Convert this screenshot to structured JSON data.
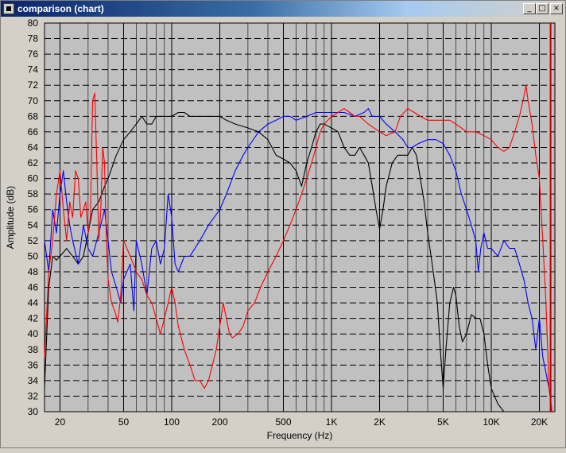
{
  "window": {
    "title": "comparison (chart)",
    "minimize_glyph": "_",
    "maximize_glyph": "□",
    "close_glyph": "×"
  },
  "chart_data": {
    "type": "line",
    "xlabel": "Frequency (Hz)",
    "ylabel": "Amplitude (dB)",
    "xscale": "log",
    "xlim": [
      16,
      25000
    ],
    "ylim": [
      30,
      80
    ],
    "grid": true,
    "background": "#c0c0c0",
    "xtick_labels": [
      {
        "v": 20,
        "t": "20"
      },
      {
        "v": 50,
        "t": "50"
      },
      {
        "v": 100,
        "t": "100"
      },
      {
        "v": 200,
        "t": "200"
      },
      {
        "v": 500,
        "t": "500"
      },
      {
        "v": 1000,
        "t": "1K"
      },
      {
        "v": 2000,
        "t": "2K"
      },
      {
        "v": 5000,
        "t": "5K"
      },
      {
        "v": 10000,
        "t": "10K"
      },
      {
        "v": 20000,
        "t": "20K"
      }
    ],
    "minor_xticks": [
      30,
      40,
      60,
      70,
      80,
      90,
      300,
      400,
      600,
      700,
      800,
      900,
      3000,
      4000,
      6000,
      7000,
      8000,
      9000
    ],
    "yticks": [
      30,
      32,
      34,
      36,
      38,
      40,
      42,
      44,
      46,
      48,
      50,
      52,
      54,
      56,
      58,
      60,
      62,
      64,
      66,
      68,
      70,
      72,
      74,
      76,
      78,
      80
    ],
    "cursor": {
      "x": 23500,
      "color": "#c00000"
    },
    "series": [
      {
        "color": "#000000",
        "points": [
          [
            16,
            33
          ],
          [
            17,
            46
          ],
          [
            18,
            50
          ],
          [
            19,
            49.5
          ],
          [
            20,
            50
          ],
          [
            21,
            50.5
          ],
          [
            22,
            51
          ],
          [
            24,
            50
          ],
          [
            26,
            49
          ],
          [
            28,
            50
          ],
          [
            30,
            53
          ],
          [
            32,
            56
          ],
          [
            35,
            57
          ],
          [
            38,
            59
          ],
          [
            40,
            60
          ],
          [
            45,
            63
          ],
          [
            50,
            65
          ],
          [
            55,
            66
          ],
          [
            60,
            67
          ],
          [
            65,
            68
          ],
          [
            70,
            67
          ],
          [
            75,
            67
          ],
          [
            80,
            68
          ],
          [
            90,
            68
          ],
          [
            100,
            68
          ],
          [
            110,
            68.5
          ],
          [
            120,
            68.5
          ],
          [
            130,
            68
          ],
          [
            150,
            68
          ],
          [
            170,
            68
          ],
          [
            200,
            68
          ],
          [
            220,
            67.5
          ],
          [
            250,
            67
          ],
          [
            300,
            66.5
          ],
          [
            350,
            66
          ],
          [
            400,
            65
          ],
          [
            450,
            63
          ],
          [
            500,
            62.5
          ],
          [
            550,
            62
          ],
          [
            600,
            61
          ],
          [
            650,
            59
          ],
          [
            700,
            62
          ],
          [
            750,
            64
          ],
          [
            800,
            66
          ],
          [
            850,
            67
          ],
          [
            900,
            67
          ],
          [
            1000,
            66.5
          ],
          [
            1100,
            66
          ],
          [
            1200,
            64
          ],
          [
            1300,
            63
          ],
          [
            1400,
            63
          ],
          [
            1500,
            64
          ],
          [
            1600,
            63
          ],
          [
            1700,
            62
          ],
          [
            1800,
            59
          ],
          [
            1900,
            56
          ],
          [
            2000,
            53.5
          ],
          [
            2100,
            56
          ],
          [
            2200,
            59
          ],
          [
            2400,
            62
          ],
          [
            2600,
            63
          ],
          [
            2800,
            63
          ],
          [
            3000,
            63
          ],
          [
            3200,
            64
          ],
          [
            3400,
            63
          ],
          [
            3600,
            60
          ],
          [
            3800,
            57
          ],
          [
            4000,
            53
          ],
          [
            4200,
            50
          ],
          [
            4400,
            47
          ],
          [
            4600,
            44
          ],
          [
            4800,
            38
          ],
          [
            5000,
            33
          ],
          [
            5200,
            38
          ],
          [
            5500,
            44
          ],
          [
            5800,
            46
          ],
          [
            6000,
            45
          ],
          [
            6300,
            41
          ],
          [
            6600,
            39
          ],
          [
            7000,
            40
          ],
          [
            7500,
            42.5
          ],
          [
            8000,
            42
          ],
          [
            8500,
            42
          ],
          [
            9000,
            40
          ],
          [
            9500,
            36
          ],
          [
            10000,
            33
          ],
          [
            11000,
            31
          ],
          [
            12000,
            30
          ]
        ]
      },
      {
        "color": "#0000ff",
        "points": [
          [
            16,
            52
          ],
          [
            17,
            48
          ],
          [
            18,
            56
          ],
          [
            19,
            53
          ],
          [
            20,
            58
          ],
          [
            21,
            61
          ],
          [
            22,
            57
          ],
          [
            23,
            54
          ],
          [
            24,
            52
          ],
          [
            26,
            49
          ],
          [
            28,
            54
          ],
          [
            30,
            51
          ],
          [
            32,
            50
          ],
          [
            35,
            53
          ],
          [
            38,
            56
          ],
          [
            40,
            52
          ],
          [
            42,
            48
          ],
          [
            45,
            46
          ],
          [
            48,
            44
          ],
          [
            50,
            47
          ],
          [
            55,
            49
          ],
          [
            58,
            43
          ],
          [
            60,
            52
          ],
          [
            65,
            49
          ],
          [
            70,
            45
          ],
          [
            75,
            51
          ],
          [
            80,
            52
          ],
          [
            85,
            49
          ],
          [
            90,
            51
          ],
          [
            95,
            58
          ],
          [
            100,
            55
          ],
          [
            105,
            49
          ],
          [
            110,
            48
          ],
          [
            120,
            50
          ],
          [
            130,
            50
          ],
          [
            150,
            52
          ],
          [
            170,
            54
          ],
          [
            200,
            56
          ],
          [
            220,
            58
          ],
          [
            250,
            61
          ],
          [
            280,
            63
          ],
          [
            300,
            64
          ],
          [
            350,
            66
          ],
          [
            400,
            67
          ],
          [
            450,
            67.5
          ],
          [
            500,
            68
          ],
          [
            550,
            68
          ],
          [
            600,
            67.5
          ],
          [
            700,
            68
          ],
          [
            800,
            68.5
          ],
          [
            900,
            68.5
          ],
          [
            1000,
            68.5
          ],
          [
            1100,
            68.5
          ],
          [
            1200,
            68.5
          ],
          [
            1400,
            68
          ],
          [
            1600,
            68.5
          ],
          [
            1700,
            69
          ],
          [
            1800,
            68
          ],
          [
            2000,
            68
          ],
          [
            2200,
            67
          ],
          [
            2500,
            66
          ],
          [
            2800,
            65
          ],
          [
            3000,
            64
          ],
          [
            3200,
            64
          ],
          [
            3500,
            64.5
          ],
          [
            4000,
            65
          ],
          [
            4500,
            65
          ],
          [
            5000,
            64.5
          ],
          [
            5500,
            63
          ],
          [
            6000,
            61
          ],
          [
            6500,
            58
          ],
          [
            7000,
            56
          ],
          [
            7500,
            54
          ],
          [
            8000,
            52
          ],
          [
            8300,
            48
          ],
          [
            8600,
            51
          ],
          [
            9000,
            53
          ],
          [
            9500,
            51
          ],
          [
            10000,
            51
          ],
          [
            11000,
            50
          ],
          [
            12000,
            52
          ],
          [
            13000,
            51
          ],
          [
            14000,
            51
          ],
          [
            15000,
            49
          ],
          [
            16000,
            47
          ],
          [
            17000,
            44
          ],
          [
            18000,
            42
          ],
          [
            19000,
            38
          ],
          [
            20000,
            42
          ],
          [
            21000,
            37
          ],
          [
            22000,
            35
          ],
          [
            23000,
            33
          ],
          [
            24000,
            30
          ]
        ]
      },
      {
        "color": "#ff0000",
        "points": [
          [
            16,
            37
          ],
          [
            17,
            48
          ],
          [
            18,
            52
          ],
          [
            19,
            58
          ],
          [
            20,
            61
          ],
          [
            21,
            56
          ],
          [
            22,
            52
          ],
          [
            23,
            57
          ],
          [
            24,
            55
          ],
          [
            25,
            61
          ],
          [
            26,
            60
          ],
          [
            27,
            55
          ],
          [
            28,
            56
          ],
          [
            29,
            57
          ],
          [
            30,
            53
          ],
          [
            31,
            55
          ],
          [
            32,
            70
          ],
          [
            33,
            71
          ],
          [
            34,
            62
          ],
          [
            35,
            52
          ],
          [
            36,
            56
          ],
          [
            37,
            64
          ],
          [
            38,
            62
          ],
          [
            39,
            52
          ],
          [
            40,
            47
          ],
          [
            42,
            44
          ],
          [
            44,
            43
          ],
          [
            46,
            41.5
          ],
          [
            48,
            45
          ],
          [
            50,
            52
          ],
          [
            55,
            50
          ],
          [
            60,
            48
          ],
          [
            65,
            47
          ],
          [
            70,
            45
          ],
          [
            75,
            44
          ],
          [
            80,
            42
          ],
          [
            85,
            40
          ],
          [
            90,
            42
          ],
          [
            95,
            44
          ],
          [
            100,
            46
          ],
          [
            105,
            44
          ],
          [
            110,
            41
          ],
          [
            120,
            38
          ],
          [
            130,
            36
          ],
          [
            140,
            34
          ],
          [
            150,
            34
          ],
          [
            160,
            33
          ],
          [
            170,
            34
          ],
          [
            180,
            36
          ],
          [
            190,
            38
          ],
          [
            200,
            41
          ],
          [
            210,
            44
          ],
          [
            220,
            42
          ],
          [
            230,
            40
          ],
          [
            240,
            39.5
          ],
          [
            260,
            40
          ],
          [
            280,
            41
          ],
          [
            300,
            43
          ],
          [
            330,
            44
          ],
          [
            360,
            46
          ],
          [
            400,
            48
          ],
          [
            450,
            50
          ],
          [
            500,
            52
          ],
          [
            550,
            54
          ],
          [
            600,
            56
          ],
          [
            650,
            58
          ],
          [
            700,
            60
          ],
          [
            750,
            62
          ],
          [
            800,
            64
          ],
          [
            850,
            66
          ],
          [
            900,
            67
          ],
          [
            1000,
            68
          ],
          [
            1100,
            68.5
          ],
          [
            1200,
            69
          ],
          [
            1300,
            68.5
          ],
          [
            1400,
            68
          ],
          [
            1500,
            68
          ],
          [
            1700,
            67
          ],
          [
            2000,
            66
          ],
          [
            2200,
            65.5
          ],
          [
            2500,
            66
          ],
          [
            2700,
            68
          ],
          [
            3000,
            69
          ],
          [
            3300,
            68.5
          ],
          [
            3600,
            68
          ],
          [
            4000,
            67.5
          ],
          [
            4500,
            67.5
          ],
          [
            5000,
            67.5
          ],
          [
            5500,
            67.5
          ],
          [
            6000,
            67
          ],
          [
            6500,
            66.5
          ],
          [
            7000,
            66
          ],
          [
            8000,
            66
          ],
          [
            9000,
            65.5
          ],
          [
            10000,
            65
          ],
          [
            11000,
            64
          ],
          [
            12000,
            63.5
          ],
          [
            13000,
            64
          ],
          [
            14000,
            66
          ],
          [
            15000,
            68
          ],
          [
            16000,
            70.5
          ],
          [
            16500,
            72
          ],
          [
            17000,
            70
          ],
          [
            18000,
            67
          ],
          [
            19000,
            63
          ],
          [
            20000,
            60
          ],
          [
            21000,
            52
          ],
          [
            22000,
            44
          ],
          [
            23000,
            33
          ],
          [
            24000,
            30
          ]
        ]
      }
    ]
  }
}
